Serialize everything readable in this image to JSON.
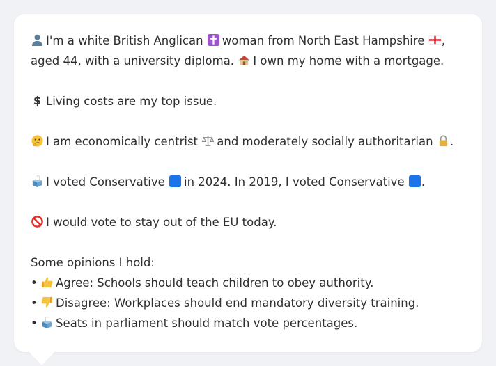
{
  "profile": {
    "line1": {
      "icon": "person-icon",
      "pre": "I'm a white British Anglican",
      "religion_icon": "latin-cross-icon",
      "mid": "woman from North East Hampshire",
      "flag_icon": "england-flag-icon",
      "post": ",",
      "line2": "aged 44, with a university diploma.",
      "home_icon": "house-icon",
      "home_text": "I own my home with a mortgage."
    },
    "issue": {
      "icon": "dollar-sign-icon",
      "text": "Living costs are my top issue."
    },
    "ideology": {
      "icon": "thinking-face-icon",
      "pre": "I am economically centrist",
      "scales_icon": "balance-scale-icon",
      "mid": "and moderately socially authoritarian",
      "lock_icon": "padlock-icon",
      "post": "."
    },
    "votes": {
      "icon": "ballot-box-icon",
      "pre": "I voted Conservative",
      "party_icon_1": "blue-square-icon",
      "mid": "in 2024. In 2019, I voted Conservative",
      "party_icon_2": "blue-square-icon",
      "post": "."
    },
    "eu": {
      "icon": "prohibited-icon",
      "text": "I would vote to stay out of the EU today."
    },
    "opinions": {
      "heading": "Some opinions I hold:",
      "bullet": "•",
      "items": [
        {
          "icon": "thumbs-up-icon",
          "text": "Agree: Schools should teach children to obey authority."
        },
        {
          "icon": "thumbs-down-icon",
          "text": "Disagree: Workplaces should end mandatory diversity training."
        },
        {
          "icon": "ballot-box-icon",
          "text": "Seats in parliament should match vote percentages."
        }
      ]
    }
  },
  "colors": {
    "background": "#f1f2f5",
    "card": "#ffffff",
    "text": "#2f2f33",
    "conservative_blue": "#1d74e8"
  }
}
